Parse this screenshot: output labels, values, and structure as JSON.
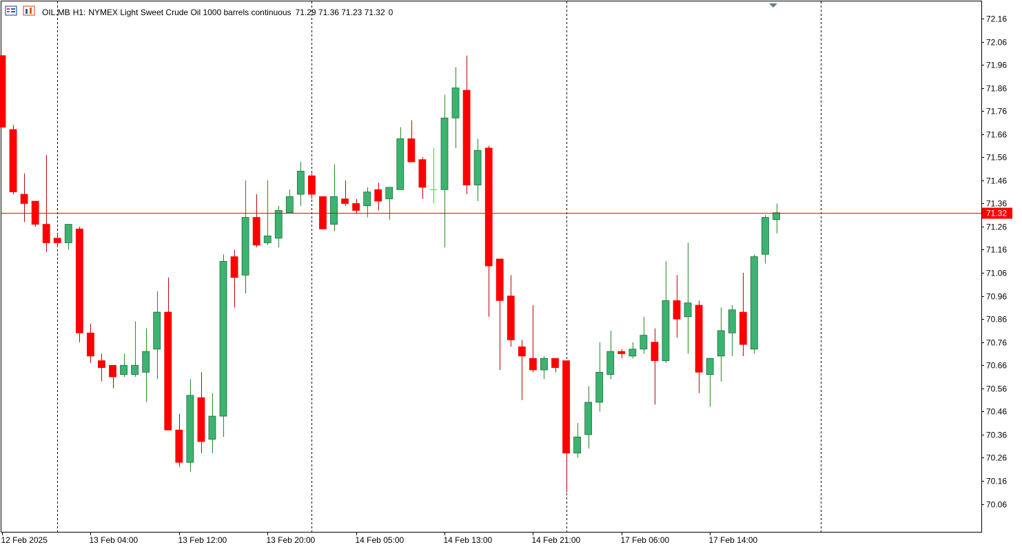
{
  "header": {
    "symbol": "OIL.MB",
    "timeframe": "H1:",
    "description": "NYMEX Light Sweet Crude Oil 1000 barrels continuous",
    "ohlc": "71.29 71.36 71.23 71.32",
    "extra": "0"
  },
  "icons": {
    "chart_list": "chart-list-icon",
    "chart_window": "chart-window-icon",
    "shift_marker": "chart-shift-marker-icon"
  },
  "colors": {
    "bull": "#3cb371",
    "bear": "#ff0000",
    "doji": "#39d239",
    "wick_bull": "#228b22",
    "wick_bear": "#c00000",
    "price_line": "#ff0000",
    "grid": "#000000",
    "axis": "#000000",
    "marker": "#607d8b"
  },
  "chart_data": {
    "type": "candlestick",
    "symbol": "OIL.MB",
    "timeframe": "H1",
    "ylim": [
      69.96,
      72.22
    ],
    "y_ticks": [
      "72.16",
      "72.06",
      "71.96",
      "71.86",
      "71.76",
      "71.66",
      "71.56",
      "71.46",
      "71.36",
      "71.26",
      "71.16",
      "71.06",
      "70.96",
      "70.86",
      "70.76",
      "70.66",
      "70.56",
      "70.46",
      "70.36",
      "70.26",
      "70.16",
      "70.06"
    ],
    "x_ticks": [
      {
        "label": "12 Feb 2025",
        "index": 0
      },
      {
        "label": "13 Feb 04:00",
        "index": 8
      },
      {
        "label": "13 Feb 12:00",
        "index": 16
      },
      {
        "label": "13 Feb 20:00",
        "index": 24
      },
      {
        "label": "14 Feb 05:00",
        "index": 32
      },
      {
        "label": "14 Feb 13:00",
        "index": 40
      },
      {
        "label": "14 Feb 21:00",
        "index": 48
      },
      {
        "label": "17 Feb 06:00",
        "index": 56
      },
      {
        "label": "17 Feb 14:00",
        "index": 64
      }
    ],
    "separators": [
      5,
      28,
      51,
      74
    ],
    "current_price": "71.32",
    "current_price_value": 71.32,
    "candles": [
      [
        72.0,
        72.0,
        71.69,
        71.69
      ],
      [
        71.68,
        71.7,
        71.4,
        71.41
      ],
      [
        71.4,
        71.49,
        71.28,
        71.36
      ],
      [
        71.37,
        71.37,
        71.26,
        71.27
      ],
      [
        71.27,
        71.57,
        71.15,
        71.19
      ],
      [
        71.21,
        71.23,
        71.17,
        71.19
      ],
      [
        71.19,
        71.27,
        71.16,
        71.27
      ],
      [
        71.25,
        71.26,
        70.76,
        70.8
      ],
      [
        70.8,
        70.84,
        70.67,
        70.7
      ],
      [
        70.68,
        70.71,
        70.59,
        70.65
      ],
      [
        70.66,
        70.66,
        70.56,
        70.61
      ],
      [
        70.62,
        70.71,
        70.61,
        70.66
      ],
      [
        70.62,
        70.85,
        70.61,
        70.66
      ],
      [
        70.63,
        70.82,
        70.5,
        70.72
      ],
      [
        70.73,
        70.98,
        70.6,
        70.89
      ],
      [
        70.89,
        71.04,
        70.38,
        70.38
      ],
      [
        70.38,
        70.45,
        70.22,
        70.24
      ],
      [
        70.24,
        70.6,
        70.2,
        70.53
      ],
      [
        70.52,
        70.63,
        70.28,
        70.33
      ],
      [
        70.34,
        70.54,
        70.28,
        70.44
      ],
      [
        70.44,
        71.14,
        70.35,
        71.11
      ],
      [
        71.13,
        71.16,
        70.91,
        71.04
      ],
      [
        71.05,
        71.46,
        70.97,
        71.3
      ],
      [
        71.3,
        71.4,
        71.17,
        71.18
      ],
      [
        71.19,
        71.46,
        71.18,
        71.22
      ],
      [
        71.21,
        71.35,
        71.17,
        71.33
      ],
      [
        71.32,
        71.42,
        71.32,
        71.39
      ],
      [
        71.4,
        71.54,
        71.35,
        71.5
      ],
      [
        71.48,
        71.49,
        71.38,
        71.4
      ],
      [
        71.39,
        71.39,
        71.26,
        71.25
      ],
      [
        71.27,
        71.53,
        71.24,
        71.39
      ],
      [
        71.38,
        71.46,
        71.35,
        71.36
      ],
      [
        71.36,
        71.38,
        71.32,
        71.33
      ],
      [
        71.35,
        71.43,
        71.3,
        71.41
      ],
      [
        71.42,
        71.45,
        71.33,
        71.37
      ],
      [
        71.38,
        71.42,
        71.29,
        71.43
      ],
      [
        71.42,
        71.69,
        71.42,
        71.64
      ],
      [
        71.64,
        71.72,
        71.54,
        71.54
      ],
      [
        71.55,
        71.56,
        71.38,
        71.43
      ],
      [
        71.42,
        71.6,
        71.36,
        71.42
      ],
      [
        71.42,
        71.83,
        71.17,
        71.73
      ],
      [
        71.73,
        71.95,
        71.6,
        71.86
      ],
      [
        71.85,
        72.0,
        71.4,
        71.44
      ],
      [
        71.44,
        71.64,
        71.37,
        71.59
      ],
      [
        71.6,
        71.61,
        70.87,
        71.09
      ],
      [
        71.12,
        71.12,
        70.64,
        70.94
      ],
      [
        70.96,
        71.05,
        70.74,
        70.77
      ],
      [
        70.74,
        70.77,
        70.51,
        70.7
      ],
      [
        70.69,
        70.92,
        70.63,
        70.64
      ],
      [
        70.64,
        70.7,
        70.6,
        70.69
      ],
      [
        70.69,
        70.69,
        70.63,
        70.65
      ],
      [
        70.68,
        70.68,
        70.11,
        70.28
      ],
      [
        70.28,
        70.41,
        70.26,
        70.35
      ],
      [
        70.36,
        70.57,
        70.3,
        70.5
      ],
      [
        70.5,
        70.76,
        70.46,
        70.63
      ],
      [
        70.62,
        70.81,
        70.6,
        70.72
      ],
      [
        70.72,
        70.73,
        70.69,
        70.71
      ],
      [
        70.7,
        70.76,
        70.69,
        70.73
      ],
      [
        70.73,
        70.87,
        70.71,
        70.79
      ],
      [
        70.76,
        70.82,
        70.49,
        70.68
      ],
      [
        70.68,
        71.11,
        70.67,
        70.94
      ],
      [
        70.94,
        71.05,
        70.78,
        70.86
      ],
      [
        70.87,
        71.19,
        70.71,
        70.93
      ],
      [
        70.92,
        70.94,
        70.54,
        70.63
      ],
      [
        70.62,
        70.69,
        70.48,
        70.69
      ],
      [
        70.7,
        70.91,
        70.59,
        70.81
      ],
      [
        70.8,
        70.92,
        70.7,
        70.9
      ],
      [
        70.89,
        71.06,
        70.7,
        70.75
      ],
      [
        70.73,
        71.14,
        70.71,
        71.13
      ],
      [
        71.14,
        71.31,
        71.1,
        71.3
      ],
      [
        71.29,
        71.36,
        71.23,
        71.32
      ]
    ]
  }
}
